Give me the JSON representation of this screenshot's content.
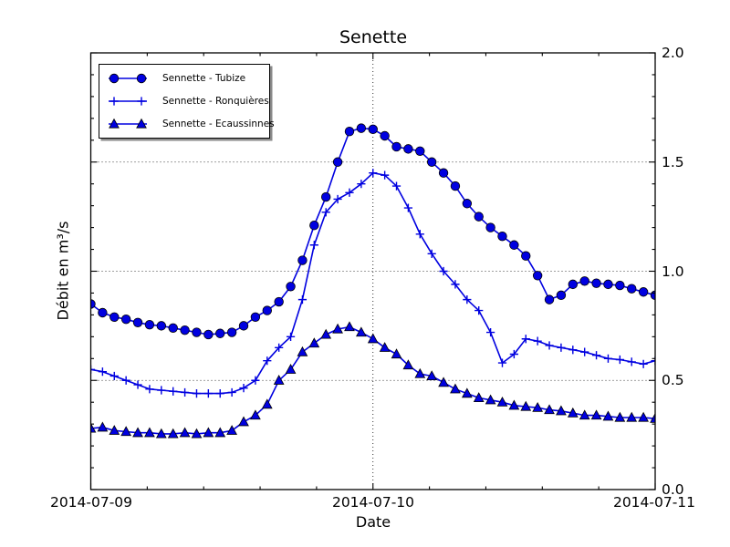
{
  "chart_data": {
    "type": "line",
    "title": "Senette",
    "xlabel": "Date",
    "ylabel": "Débit en m³/s",
    "x_ticks": [
      "2014-07-09",
      "2014-07-10",
      "2014-07-11"
    ],
    "y_ticks": [
      "2.0",
      "1.5",
      "1.0",
      "0.5",
      "0.0"
    ],
    "ylim": [
      0.0,
      2.0
    ],
    "x_hours_span": 48,
    "x_minor_step_hours": 4.8,
    "y_minor_step": 0.1,
    "grid": "dotted black; horizontal at 0.5, 1.0, 1.5; vertical at 2014-07-10",
    "legend_position": "upper left",
    "colors": {
      "line_blue": "#0000e0",
      "marker_edge": "#000000",
      "axis_black": "#000000",
      "background": "#ffffff"
    },
    "series": [
      {
        "key": "tubize",
        "name": "Sennette - Tubize",
        "marker": "circle",
        "values": [
          0.85,
          0.81,
          0.79,
          0.78,
          0.765,
          0.755,
          0.75,
          0.74,
          0.73,
          0.72,
          0.71,
          0.715,
          0.72,
          0.75,
          0.79,
          0.82,
          0.86,
          0.93,
          1.05,
          1.21,
          1.34,
          1.5,
          1.64,
          1.655,
          1.65,
          1.62,
          1.57,
          1.56,
          1.55,
          1.5,
          1.45,
          1.39,
          1.31,
          1.25,
          1.2,
          1.16,
          1.12,
          1.07,
          0.98,
          0.87,
          0.89,
          0.94,
          0.955,
          0.945,
          0.94,
          0.935,
          0.92,
          0.905,
          0.89
        ]
      },
      {
        "key": "ronquieres",
        "name": "Sennette - Ronquières",
        "marker": "plus",
        "values": [
          0.55,
          0.54,
          0.52,
          0.5,
          0.48,
          0.46,
          0.455,
          0.45,
          0.445,
          0.44,
          0.44,
          0.44,
          0.445,
          0.465,
          0.5,
          0.59,
          0.65,
          0.7,
          0.87,
          1.12,
          1.27,
          1.33,
          1.36,
          1.4,
          1.45,
          1.44,
          1.39,
          1.29,
          1.17,
          1.08,
          1.0,
          0.94,
          0.87,
          0.82,
          0.72,
          0.58,
          0.62,
          0.69,
          0.68,
          0.66,
          0.65,
          0.64,
          0.63,
          0.615,
          0.6,
          0.595,
          0.585,
          0.575,
          0.59
        ]
      },
      {
        "key": "ecaussinnes",
        "name": "Sennette - Ecaussinnes",
        "marker": "triangle",
        "values": [
          0.28,
          0.285,
          0.27,
          0.265,
          0.26,
          0.26,
          0.255,
          0.255,
          0.26,
          0.255,
          0.26,
          0.26,
          0.27,
          0.31,
          0.34,
          0.39,
          0.5,
          0.55,
          0.63,
          0.67,
          0.71,
          0.735,
          0.745,
          0.72,
          0.69,
          0.65,
          0.62,
          0.57,
          0.53,
          0.52,
          0.49,
          0.46,
          0.44,
          0.42,
          0.41,
          0.4,
          0.385,
          0.38,
          0.375,
          0.365,
          0.36,
          0.35,
          0.34,
          0.34,
          0.335,
          0.33,
          0.33,
          0.33,
          0.325
        ]
      }
    ]
  }
}
